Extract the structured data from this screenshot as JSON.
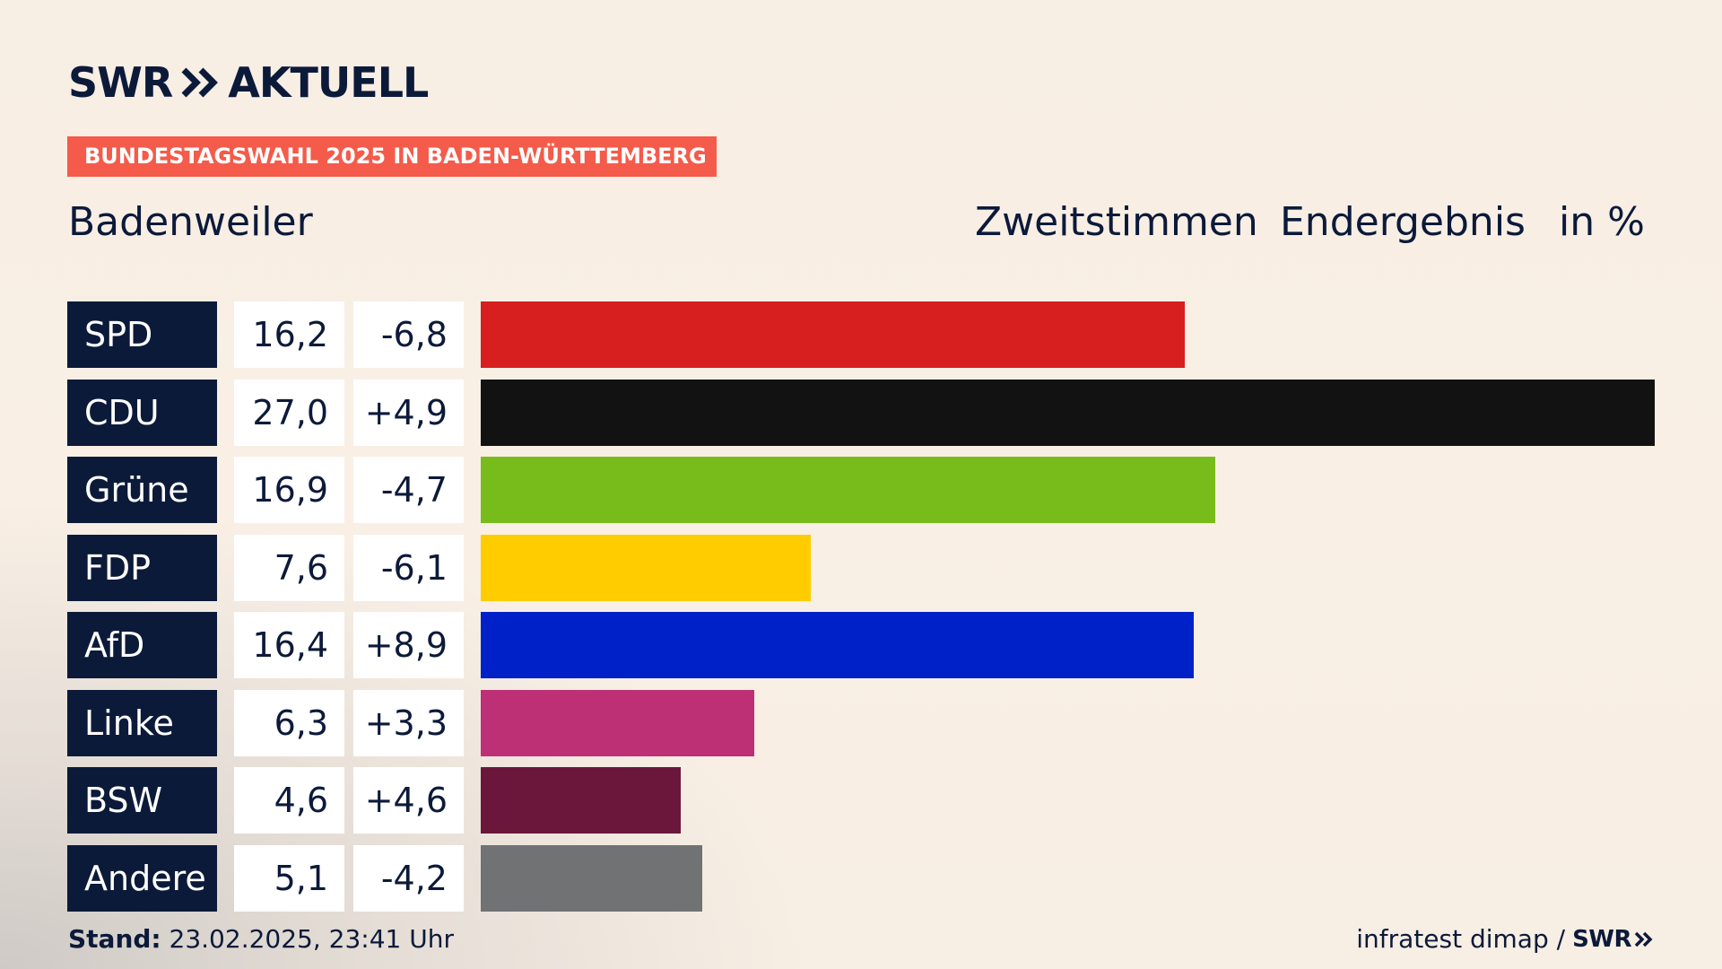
{
  "brand": {
    "logo_text": "SWR",
    "logo_suffix": "AKTUELL",
    "colors": {
      "navy": "#0c1a3a",
      "banner": "#f55b4a"
    }
  },
  "banner": {
    "text": "BUNDESTAGSWAHL 2025 IN BADEN-WÜRTTEMBERG"
  },
  "header": {
    "location": "Badenweiler",
    "measure": "Zweitstimmen",
    "status": "Endergebnis",
    "unit": "in %"
  },
  "chart_data": {
    "type": "bar",
    "orientation": "horizontal",
    "categories": [
      "SPD",
      "CDU",
      "Grüne",
      "FDP",
      "AfD",
      "Linke",
      "BSW",
      "Andere"
    ],
    "values": [
      16.2,
      27.0,
      16.9,
      7.6,
      16.4,
      6.3,
      4.6,
      5.1
    ],
    "value_labels": [
      "16,2",
      "27,0",
      "16,9",
      "7,6",
      "16,4",
      "6,3",
      "4,6",
      "5,1"
    ],
    "diffs": [
      -6.8,
      4.9,
      -4.7,
      -6.1,
      8.9,
      3.3,
      4.6,
      -4.2
    ],
    "diff_labels": [
      "-6,8",
      "+4,9",
      "-4,7",
      "-6,1",
      "+8,9",
      "+3,3",
      "+4,6",
      "-4,2"
    ],
    "colors": [
      "#d71f1f",
      "#121212",
      "#78bc1b",
      "#ffcc00",
      "#0021c8",
      "#bd3075",
      "#6a173b",
      "#717274"
    ],
    "xlim": [
      0,
      27.0
    ],
    "title": "",
    "xlabel": "",
    "ylabel": ""
  },
  "footer": {
    "stand_label": "Stand:",
    "stand_value": "23.02.2025, 23:41 Uhr",
    "source": "infratest dimap /",
    "source_logo": "SWR"
  }
}
